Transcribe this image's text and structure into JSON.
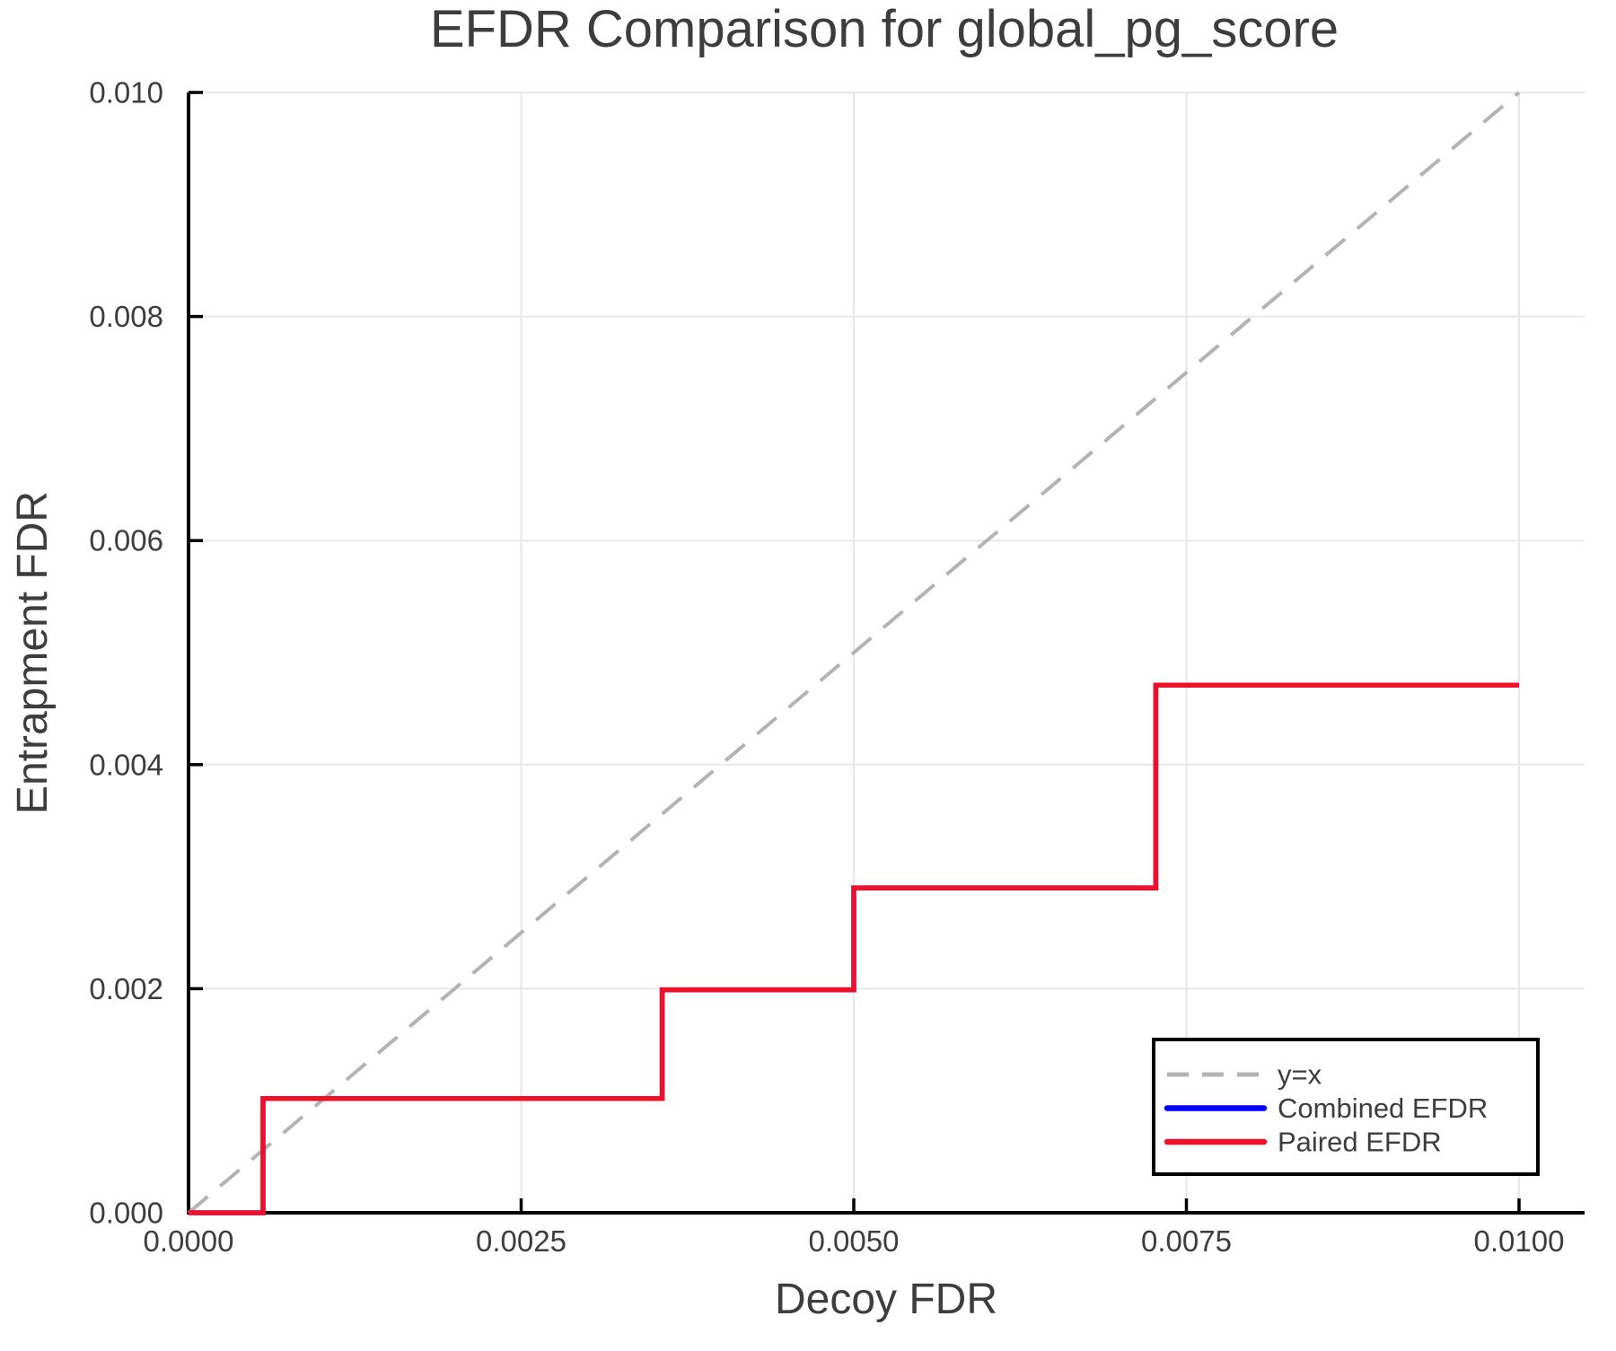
{
  "chart_data": {
    "type": "line",
    "title": "EFDR Comparison for global_pg_score",
    "xlabel": "Decoy FDR",
    "ylabel": "Entrapment FDR",
    "xlim": [
      0.0,
      0.01
    ],
    "ylim": [
      0.0,
      0.01
    ],
    "grid": true,
    "legend_position": "lower right",
    "x_ticks": {
      "values": [
        0.0,
        0.0025,
        0.005,
        0.0075,
        0.01
      ],
      "labels": [
        "0.0000",
        "0.0025",
        "0.0050",
        "0.0075",
        "0.0100"
      ]
    },
    "y_ticks": {
      "values": [
        0.0,
        0.002,
        0.004,
        0.006,
        0.008,
        0.01
      ],
      "labels": [
        "0.000",
        "0.002",
        "0.004",
        "0.006",
        "0.008",
        "0.010"
      ]
    },
    "series": [
      {
        "name": "y=x",
        "color": "#b3b3b3",
        "dash": "dashed",
        "width": 4,
        "points": [
          [
            0.0,
            0.0
          ],
          [
            0.01,
            0.01
          ]
        ]
      },
      {
        "name": "Combined EFDR",
        "color": "#0000ff",
        "dash": "solid",
        "width": 5.5,
        "points": [
          [
            0.0,
            0.0
          ],
          [
            0.00056,
            0.0
          ],
          [
            0.00056,
            0.00102
          ],
          [
            0.00356,
            0.00102
          ],
          [
            0.00356,
            0.00199
          ],
          [
            0.005,
            0.00199
          ],
          [
            0.005,
            0.0029
          ],
          [
            0.00727,
            0.0029
          ],
          [
            0.00727,
            0.00471
          ],
          [
            0.01,
            0.00471
          ]
        ]
      },
      {
        "name": "Paired EFDR",
        "color": "#ee1128",
        "dash": "solid",
        "width": 5.5,
        "points": [
          [
            0.0,
            0.0
          ],
          [
            0.00056,
            0.0
          ],
          [
            0.00056,
            0.00102
          ],
          [
            0.00356,
            0.00102
          ],
          [
            0.00356,
            0.00199
          ],
          [
            0.005,
            0.00199
          ],
          [
            0.005,
            0.0029
          ],
          [
            0.00727,
            0.0029
          ],
          [
            0.00727,
            0.00471
          ],
          [
            0.01,
            0.00471
          ]
        ]
      }
    ],
    "colors": {
      "grid": "#e7e7e7",
      "axis": "#000000",
      "text": "#3d3d3d",
      "legend_border": "#000000",
      "background": "#ffffff"
    }
  }
}
